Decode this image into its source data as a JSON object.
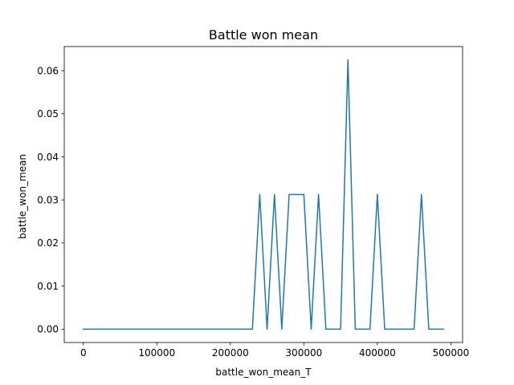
{
  "chart_data": {
    "type": "line",
    "title": "Battle won mean",
    "xlabel": "battle_won_mean_T",
    "ylabel": "battle_won_mean",
    "xlim": [
      -26000,
      516000
    ],
    "ylim": [
      -0.0031,
      0.0656
    ],
    "grid": false,
    "x_ticks": [
      0,
      100000,
      200000,
      300000,
      400000,
      500000
    ],
    "x_tick_labels": [
      "0",
      "100000",
      "200000",
      "300000",
      "400000",
      "500000"
    ],
    "y_ticks": [
      0.0,
      0.01,
      0.02,
      0.03,
      0.04,
      0.05,
      0.06
    ],
    "y_tick_labels": [
      "0.00",
      "0.01",
      "0.02",
      "0.03",
      "0.04",
      "0.05",
      "0.06"
    ],
    "series": [
      {
        "color": "#1f77b4",
        "x": [
          0,
          10000,
          20000,
          30000,
          40000,
          50000,
          60000,
          70000,
          80000,
          90000,
          100000,
          110000,
          120000,
          130000,
          140000,
          150000,
          160000,
          170000,
          180000,
          190000,
          200000,
          210000,
          220000,
          230000,
          240000,
          250000,
          260000,
          270000,
          280000,
          290000,
          300000,
          310000,
          320000,
          330000,
          340000,
          350000,
          360000,
          370000,
          380000,
          390000,
          400000,
          410000,
          420000,
          430000,
          440000,
          450000,
          460000,
          470000,
          480000,
          490000
        ],
        "y": [
          0,
          0,
          0,
          0,
          0,
          0,
          0,
          0,
          0,
          0,
          0,
          0,
          0,
          0,
          0,
          0,
          0,
          0,
          0,
          0,
          0,
          0,
          0,
          0,
          0.03125,
          0,
          0.03125,
          0,
          0.03125,
          0.03125,
          0.03125,
          0,
          0.03125,
          0,
          0,
          0,
          0.0625,
          0,
          0,
          0,
          0.03125,
          0,
          0,
          0,
          0,
          0,
          0.03125,
          0,
          0,
          0
        ]
      }
    ]
  }
}
